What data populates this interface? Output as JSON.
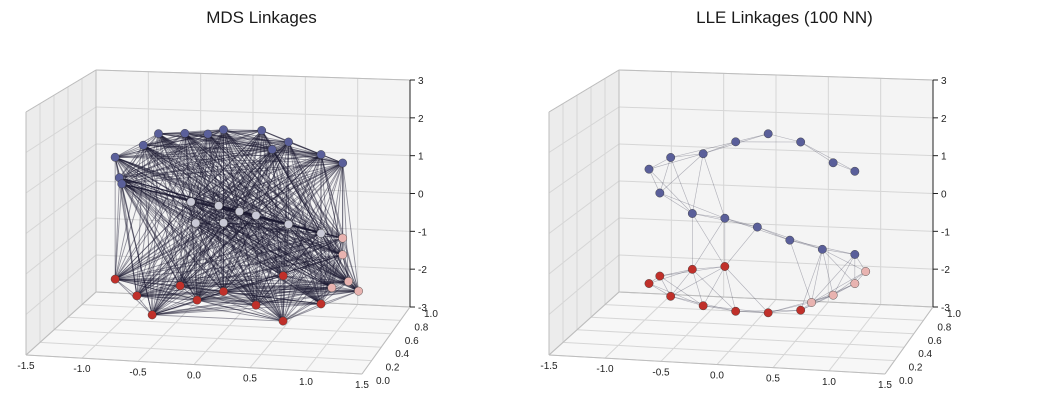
{
  "chart_data": [
    {
      "type": "scatter",
      "title": "MDS Linkages",
      "projection": "3d",
      "x_ticks": [
        "-1.5",
        "-1.0",
        "-0.5",
        "0.0",
        "0.5",
        "1.0",
        "1.5"
      ],
      "y_ticks": [
        "0.0",
        "0.2",
        "0.4",
        "0.6",
        "0.8",
        "1.0"
      ],
      "z_ticks": [
        "-3",
        "-2",
        "-1",
        "0",
        "1",
        "2",
        "3"
      ],
      "xlim": [
        -1.5,
        1.5
      ],
      "ylim": [
        0,
        1
      ],
      "zlim": [
        -3,
        3
      ],
      "grid": true,
      "series": [
        {
          "color": "#5a5f9a",
          "points": [
            [
              -1.0,
              0.5,
              1.3
            ],
            [
              -0.8,
              0.6,
              1.5
            ],
            [
              -0.6,
              0.5,
              1.9
            ],
            [
              -0.3,
              0.4,
              2.0
            ],
            [
              0.0,
              0.5,
              2.0
            ],
            [
              0.3,
              0.6,
              1.9
            ],
            [
              0.6,
              0.5,
              1.7
            ],
            [
              0.9,
              0.5,
              1.4
            ],
            [
              1.1,
              0.5,
              1.2
            ],
            [
              -0.9,
              0.4,
              0.9
            ],
            [
              -1.0,
              0.6,
              0.5
            ],
            [
              -0.2,
              0.6,
              1.8
            ],
            [
              0.5,
              0.4,
              1.6
            ]
          ]
        },
        {
          "color": "#c9c9d6",
          "points": [
            [
              -0.3,
              0.5,
              0.2
            ],
            [
              -0.2,
              0.4,
              -0.2
            ],
            [
              0.0,
              0.5,
              -0.3
            ],
            [
              0.3,
              0.5,
              -0.1
            ],
            [
              0.6,
              0.5,
              -0.3
            ],
            [
              0.9,
              0.5,
              -0.5
            ],
            [
              -0.1,
              0.6,
              0.0
            ],
            [
              0.2,
              0.4,
              0.1
            ]
          ]
        },
        {
          "color": "#c0302a",
          "points": [
            [
              -1.0,
              0.5,
              -1.8
            ],
            [
              -0.8,
              0.5,
              -2.2
            ],
            [
              -0.6,
              0.4,
              -2.5
            ],
            [
              -0.3,
              0.6,
              -2.4
            ],
            [
              0.0,
              0.5,
              -2.0
            ],
            [
              0.3,
              0.5,
              -2.3
            ],
            [
              0.6,
              0.4,
              -2.5
            ],
            [
              0.9,
              0.5,
              -2.2
            ],
            [
              -0.4,
              0.5,
              -1.9
            ],
            [
              0.5,
              0.6,
              -1.7
            ]
          ]
        },
        {
          "color": "#e8b3b0",
          "points": [
            [
              1.1,
              0.5,
              -1.0
            ],
            [
              1.2,
              0.4,
              -1.5
            ],
            [
              1.2,
              0.6,
              -2.0
            ],
            [
              1.1,
              0.5,
              -0.6
            ],
            [
              1.0,
              0.5,
              -1.8
            ]
          ]
        }
      ]
    },
    {
      "type": "scatter",
      "title": "LLE Linkages (100 NN)",
      "projection": "3d",
      "x_ticks": [
        "-1.5",
        "-1.0",
        "-0.5",
        "0.0",
        "0.5",
        "1.0",
        "1.5"
      ],
      "y_ticks": [
        "0.0",
        "0.2",
        "0.4",
        "0.6",
        "0.8",
        "1.0"
      ],
      "z_ticks": [
        "-3",
        "-2",
        "-1",
        "0",
        "1",
        "2",
        "3"
      ],
      "xlim": [
        -1.5,
        1.5
      ],
      "ylim": [
        0,
        1
      ],
      "zlim": [
        -3,
        3
      ],
      "grid": true,
      "series": [
        {
          "color": "#5a5f9a",
          "points": [
            [
              -0.9,
              0.5,
              1.0
            ],
            [
              -0.7,
              0.5,
              1.3
            ],
            [
              -0.4,
              0.5,
              1.4
            ],
            [
              -0.1,
              0.5,
              1.7
            ],
            [
              0.2,
              0.5,
              1.9
            ],
            [
              0.5,
              0.5,
              1.7
            ],
            [
              0.8,
              0.5,
              1.2
            ],
            [
              1.0,
              0.5,
              1.0
            ],
            [
              -0.8,
              0.5,
              0.4
            ],
            [
              -0.5,
              0.5,
              -0.1
            ],
            [
              -0.2,
              0.5,
              -0.2
            ],
            [
              0.1,
              0.5,
              -0.4
            ],
            [
              0.4,
              0.5,
              -0.7
            ],
            [
              0.7,
              0.5,
              -0.9
            ],
            [
              1.0,
              0.5,
              -1.0
            ]
          ]
        },
        {
          "color": "#c0302a",
          "points": [
            [
              -0.9,
              0.5,
              -1.9
            ],
            [
              -0.7,
              0.5,
              -2.2
            ],
            [
              -0.4,
              0.5,
              -2.4
            ],
            [
              -0.1,
              0.5,
              -2.5
            ],
            [
              0.2,
              0.5,
              -2.5
            ],
            [
              0.5,
              0.5,
              -2.4
            ],
            [
              -0.8,
              0.5,
              -1.7
            ],
            [
              -0.5,
              0.5,
              -1.5
            ],
            [
              -0.2,
              0.5,
              -1.4
            ]
          ]
        },
        {
          "color": "#e8b3b0",
          "points": [
            [
              0.8,
              0.5,
              -2.0
            ],
            [
              1.0,
              0.5,
              -1.7
            ],
            [
              1.1,
              0.5,
              -1.4
            ],
            [
              0.6,
              0.5,
              -2.2
            ]
          ]
        }
      ]
    }
  ]
}
